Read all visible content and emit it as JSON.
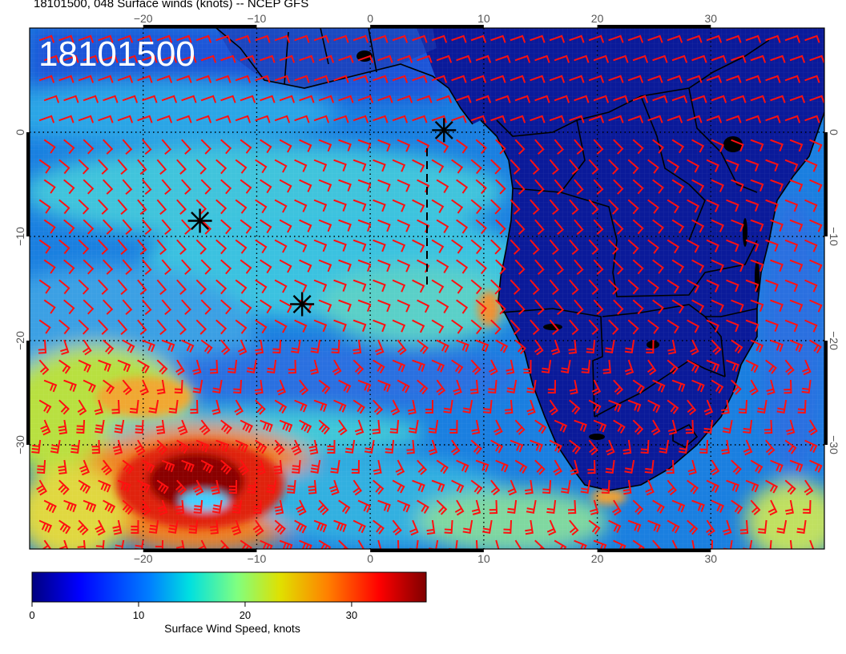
{
  "header": {
    "title": "18101500, 048 Surface winds (knots) -- NCEP GFS"
  },
  "map": {
    "timestamp_label": "18101500",
    "lon_range": [
      -30,
      40
    ],
    "lat_range": [
      -40,
      10
    ],
    "lon_ticks": [
      -20,
      -10,
      0,
      10,
      20,
      30
    ],
    "lat_ticks": [
      0,
      -10,
      -20,
      -30
    ],
    "lon_tick_labels": [
      "−20",
      "−10",
      "0",
      "10",
      "20",
      "30"
    ],
    "lat_tick_labels": [
      "0",
      "−10",
      "−20",
      "−30"
    ],
    "gridlines": "dotted",
    "land_color": "#0a1a9a",
    "barb_color": "#ff1010",
    "storm_markers": [
      {
        "lon": 6.5,
        "lat": 0.2
      },
      {
        "lon": -15,
        "lat": -8.5
      },
      {
        "lon": -6,
        "lat": -16.5
      }
    ]
  },
  "colorbar": {
    "title": "Surface Wind Speed, knots",
    "tick_labels": [
      "0",
      "10",
      "20",
      "30"
    ],
    "range": [
      0,
      37
    ],
    "colormap": [
      "#00007f",
      "#0000ff",
      "#0080ff",
      "#00e0e0",
      "#80ff80",
      "#e0e000",
      "#ff8000",
      "#ff0000",
      "#7f0000"
    ]
  }
}
